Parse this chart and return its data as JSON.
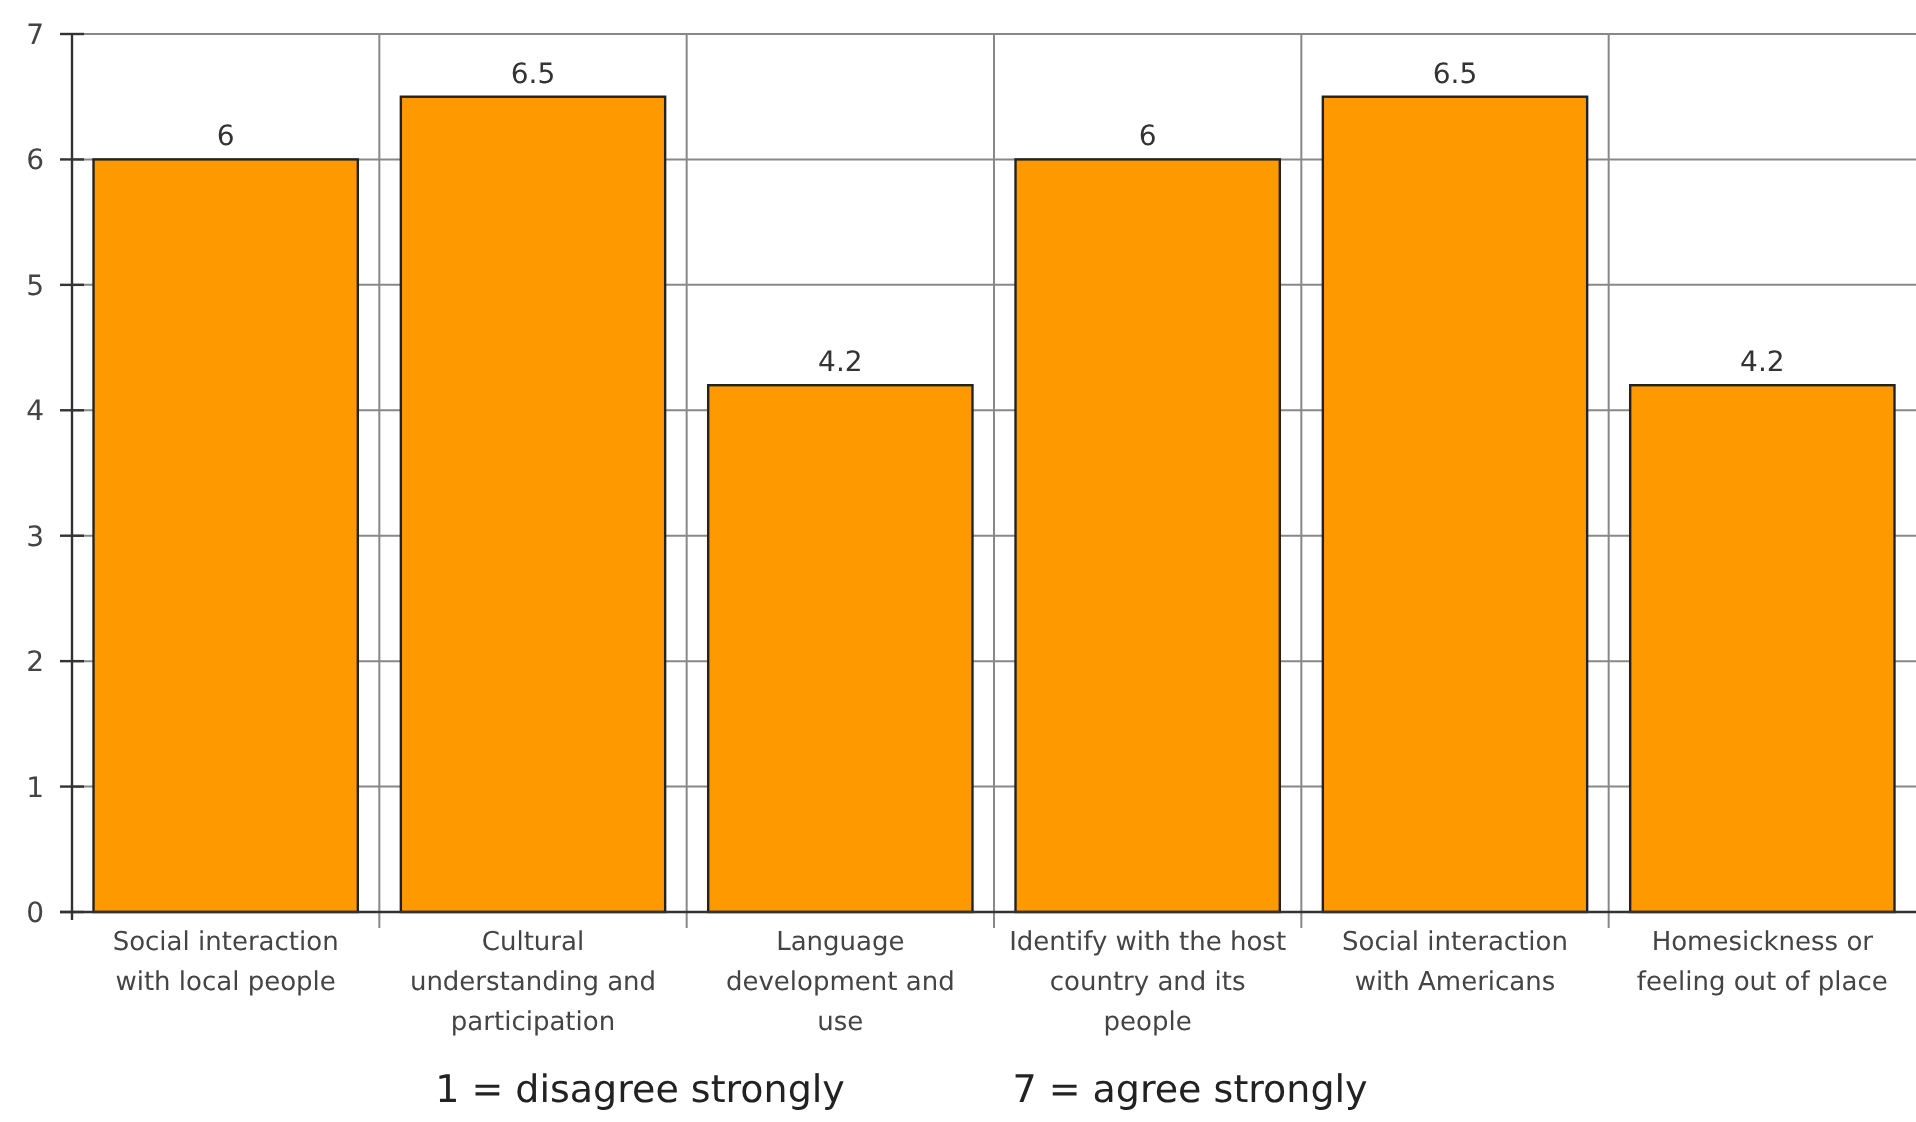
{
  "chart_data": {
    "type": "bar",
    "categories": [
      "Social interaction with local people",
      "Cultural understanding and participation",
      "Language development and use",
      "Identify with the host country and its people",
      "Social interaction with Americans",
      "Homesickness or feeling out of place"
    ],
    "values": [
      6,
      6.5,
      4.2,
      6,
      6.5,
      4.2
    ],
    "color": "#ff9900",
    "ylim": [
      0,
      7
    ],
    "yticks": [
      0,
      1,
      2,
      3,
      4,
      5,
      6,
      7
    ],
    "grid": true,
    "data_labels": true,
    "annotations": [
      "1 = disagree strongly",
      "7 = agree strongly"
    ]
  }
}
